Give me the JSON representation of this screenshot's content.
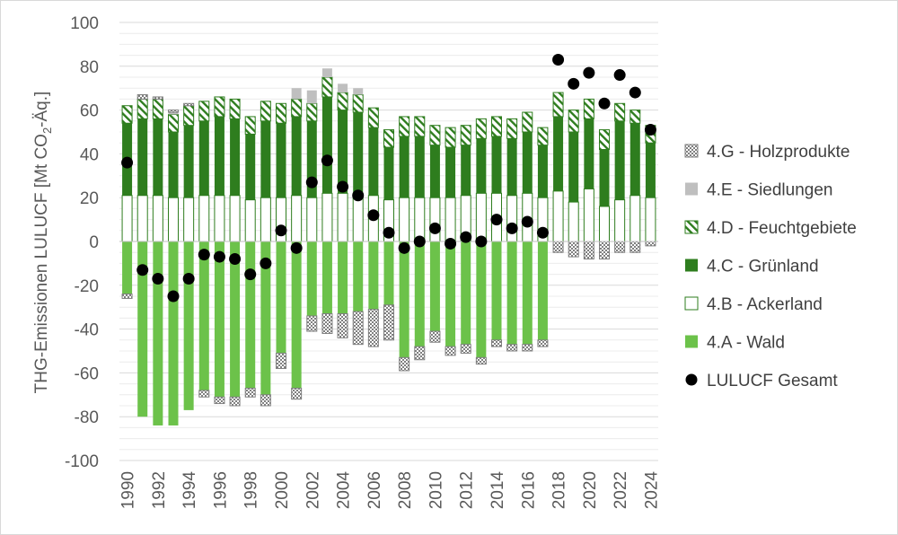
{
  "chart_data": {
    "type": "bar",
    "subtype": "stacked-bar-with-points",
    "ylabel_parts": [
      "THG-Emissionen LULUCF [Mt CO",
      "2",
      "-Äq.]"
    ],
    "ylim": [
      -100,
      100
    ],
    "yticks": [
      "100",
      "80",
      "60",
      "40",
      "20",
      "0",
      "-20",
      "-40",
      "-60",
      "-80",
      "-100"
    ],
    "grid": true,
    "legend_position": "right",
    "years": [
      1990,
      1991,
      1992,
      1993,
      1994,
      1995,
      1996,
      1997,
      1998,
      1999,
      2000,
      2001,
      2002,
      2003,
      2004,
      2005,
      2006,
      2007,
      2008,
      2009,
      2010,
      2011,
      2012,
      2013,
      2014,
      2015,
      2016,
      2017,
      2018,
      2019,
      2020,
      2021,
      2022,
      2023,
      2024
    ],
    "xtick_labels": [
      "1990",
      "1992",
      "1994",
      "1996",
      "1998",
      "2000",
      "2002",
      "2004",
      "2006",
      "2008",
      "2010",
      "2012",
      "2014",
      "2016",
      "2018",
      "2020",
      "2022",
      "2024"
    ],
    "colors": {
      "wald": "#6cc24a",
      "acker": "#ffffff",
      "gruen": "#2e7d1e",
      "feucht": "#2e7d1e",
      "siedl": "#bfbfbf",
      "holz": "#8c8c8c",
      "gesamt": "#000000"
    },
    "series": [
      {
        "key": "holz",
        "name": "4.G - Holzprodukte",
        "values": [
          -2,
          2,
          1,
          1,
          1,
          -3,
          -3,
          -4,
          -4,
          -5,
          -7,
          -5,
          -7,
          -9,
          -11,
          -15,
          -17,
          -16,
          -6,
          -6,
          -5,
          -4,
          -4,
          -3,
          -3,
          -3,
          -3,
          -3,
          -5,
          -7,
          -8,
          -8,
          -5,
          -5,
          -2
        ]
      },
      {
        "key": "siedl",
        "name": "4.E - Siedlungen",
        "values": [
          0,
          0,
          0,
          1,
          0,
          0,
          0,
          0,
          0,
          0,
          0,
          5,
          6,
          4,
          4,
          3,
          0,
          0,
          0,
          0,
          0,
          0,
          0,
          0,
          0,
          0,
          0,
          0,
          0,
          0,
          0,
          0,
          0,
          0,
          0
        ]
      },
      {
        "key": "feucht",
        "name": "4.D - Feuchtgebiete",
        "values": [
          8,
          9,
          9,
          8,
          9,
          9,
          9,
          9,
          8,
          9,
          9,
          8,
          8,
          9,
          8,
          8,
          9,
          8,
          9,
          9,
          9,
          9,
          9,
          9,
          9,
          9,
          9,
          8,
          11,
          10,
          9,
          9,
          8,
          6,
          8
        ]
      },
      {
        "key": "gruen",
        "name": "4.C - Grünland",
        "values": [
          33,
          35,
          35,
          30,
          33,
          34,
          36,
          35,
          30,
          35,
          34,
          36,
          35,
          44,
          38,
          37,
          31,
          24,
          28,
          28,
          24,
          23,
          23,
          25,
          26,
          26,
          28,
          24,
          34,
          32,
          32,
          26,
          36,
          33,
          25
        ]
      },
      {
        "key": "acker",
        "name": "4.B - Ackerland",
        "values": [
          21,
          21,
          21,
          20,
          20,
          21,
          21,
          21,
          19,
          20,
          20,
          21,
          20,
          22,
          22,
          22,
          21,
          19,
          20,
          20,
          20,
          20,
          21,
          22,
          22,
          21,
          22,
          20,
          23,
          18,
          24,
          16,
          19,
          21,
          20
        ]
      },
      {
        "key": "wald",
        "name": "4.A - Wald",
        "values": [
          -24,
          -80,
          -84,
          -84,
          -77,
          -68,
          -71,
          -71,
          -67,
          -70,
          -51,
          -67,
          -34,
          -33,
          -33,
          -32,
          -31,
          -29,
          -53,
          -48,
          -41,
          -48,
          -47,
          -53,
          -45,
          -47,
          -47,
          -45,
          0,
          0,
          0,
          0,
          0,
          0,
          0
        ]
      },
      {
        "key": "gesamt",
        "name": "LULUCF Gesamt",
        "values": [
          36,
          -13,
          -17,
          -25,
          -17,
          -6,
          -7,
          -8,
          -15,
          -10,
          5,
          -3,
          27,
          37,
          25,
          21,
          12,
          4,
          -3,
          0,
          6,
          -1,
          2,
          0,
          10,
          6,
          9,
          4,
          83,
          72,
          77,
          63,
          76,
          68,
          51
        ]
      }
    ],
    "legend_order": [
      "holz",
      "siedl",
      "feucht",
      "gruen",
      "acker",
      "wald",
      "gesamt"
    ]
  }
}
